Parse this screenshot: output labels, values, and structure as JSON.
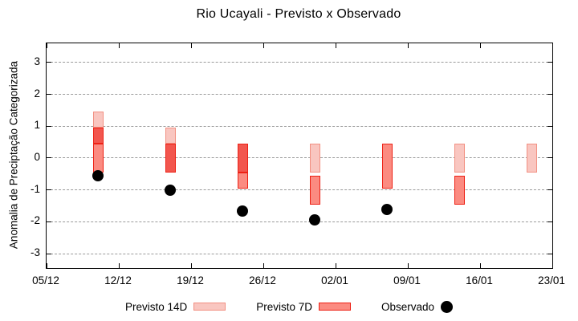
{
  "title": "Rio Ucayali - Previsto x Observado",
  "colors": {
    "fill_14d": "#f9c6c0",
    "border_14d": "#f29082",
    "fill_7d": "#fb8b81",
    "border_7d": "#ed2115",
    "fill_overlap": "#f2564e",
    "observado": "#000000",
    "grid": "#9a9a9a",
    "axis": "#000000"
  },
  "legend": {
    "items": [
      {
        "label": "Previsto 14D",
        "swatch": "14d"
      },
      {
        "label": "Previsto 7D",
        "swatch": "7d"
      },
      {
        "label": "Observado",
        "swatch": "obs"
      }
    ]
  },
  "chart_data": {
    "type": "bar",
    "subtype": "forecast-range-boxes-with-observed-points",
    "title": "Rio Ucayali - Previsto x Observado",
    "xlabel": "",
    "ylabel": "Anomalia de Preciptação Categorizada",
    "ylim": [
      -3.45,
      3.6
    ],
    "grid": true,
    "legend_position": "bottom",
    "x_total_days": 49,
    "x_ticks": [
      {
        "day": 0,
        "label": "05/12"
      },
      {
        "day": 7,
        "label": "12/12"
      },
      {
        "day": 14,
        "label": "19/12"
      },
      {
        "day": 21,
        "label": "26/12"
      },
      {
        "day": 28,
        "label": "02/01"
      },
      {
        "day": 35,
        "label": "09/01"
      },
      {
        "day": 42,
        "label": "16/01"
      },
      {
        "day": 49,
        "label": "23/01"
      }
    ],
    "y_ticks": [
      3,
      2,
      1,
      0,
      -1,
      -2,
      -3
    ],
    "series": [
      {
        "name": "Previsto 14D",
        "type": "range-box"
      },
      {
        "name": "Previsto 7D",
        "type": "range-box"
      },
      {
        "name": "Observado",
        "type": "point"
      }
    ],
    "bars": [
      {
        "date": "10/12",
        "day": 5,
        "previsto_14d": [
          0.45,
          1.45
        ],
        "previsto_7d": [
          -0.45,
          0.95
        ],
        "observado": -0.55,
        "segments": [
          {
            "lo": 0.95,
            "hi": 1.45,
            "style": "14d"
          },
          {
            "lo": 0.45,
            "hi": 0.95,
            "style": "overlap"
          },
          {
            "lo": -0.45,
            "hi": 0.45,
            "style": "7d"
          }
        ]
      },
      {
        "date": "17/12",
        "day": 12,
        "previsto_14d": [
          0.45,
          0.95
        ],
        "previsto_7d": [
          -0.45,
          0.45
        ],
        "observado": -1.0,
        "segments": [
          {
            "lo": 0.45,
            "hi": 0.95,
            "style": "14d"
          },
          {
            "lo": -0.45,
            "hi": 0.45,
            "style": "overlap"
          }
        ]
      },
      {
        "date": "24/12",
        "day": 19,
        "previsto_14d": [
          -0.45,
          0.45
        ],
        "previsto_7d": [
          -0.95,
          0.45
        ],
        "observado": -1.65,
        "segments": [
          {
            "lo": -0.45,
            "hi": 0.45,
            "style": "overlap"
          },
          {
            "lo": -0.95,
            "hi": -0.45,
            "style": "7d"
          }
        ]
      },
      {
        "date": "31/12",
        "day": 26,
        "previsto_14d": [
          -0.45,
          0.45
        ],
        "previsto_7d": [
          -1.45,
          -0.55
        ],
        "observado": -1.95,
        "segments": [
          {
            "lo": -0.45,
            "hi": 0.45,
            "style": "14d"
          },
          {
            "lo": -1.45,
            "hi": -0.55,
            "style": "7d"
          }
        ]
      },
      {
        "date": "07/01",
        "day": 33,
        "previsto_14d": null,
        "previsto_7d": [
          -0.95,
          0.45
        ],
        "observado": -1.6,
        "segments": [
          {
            "lo": -0.95,
            "hi": 0.45,
            "style": "7d"
          }
        ]
      },
      {
        "date": "14/01",
        "day": 40,
        "previsto_14d": [
          -0.45,
          0.45
        ],
        "previsto_7d": [
          -1.45,
          -0.55
        ],
        "observado": null,
        "segments": [
          {
            "lo": -0.45,
            "hi": 0.45,
            "style": "14d"
          },
          {
            "lo": -1.45,
            "hi": -0.55,
            "style": "7d"
          }
        ]
      },
      {
        "date": "21/01",
        "day": 47,
        "previsto_14d": [
          -0.45,
          0.45
        ],
        "previsto_7d": null,
        "observado": null,
        "segments": [
          {
            "lo": -0.45,
            "hi": 0.45,
            "style": "14d"
          }
        ]
      }
    ]
  }
}
